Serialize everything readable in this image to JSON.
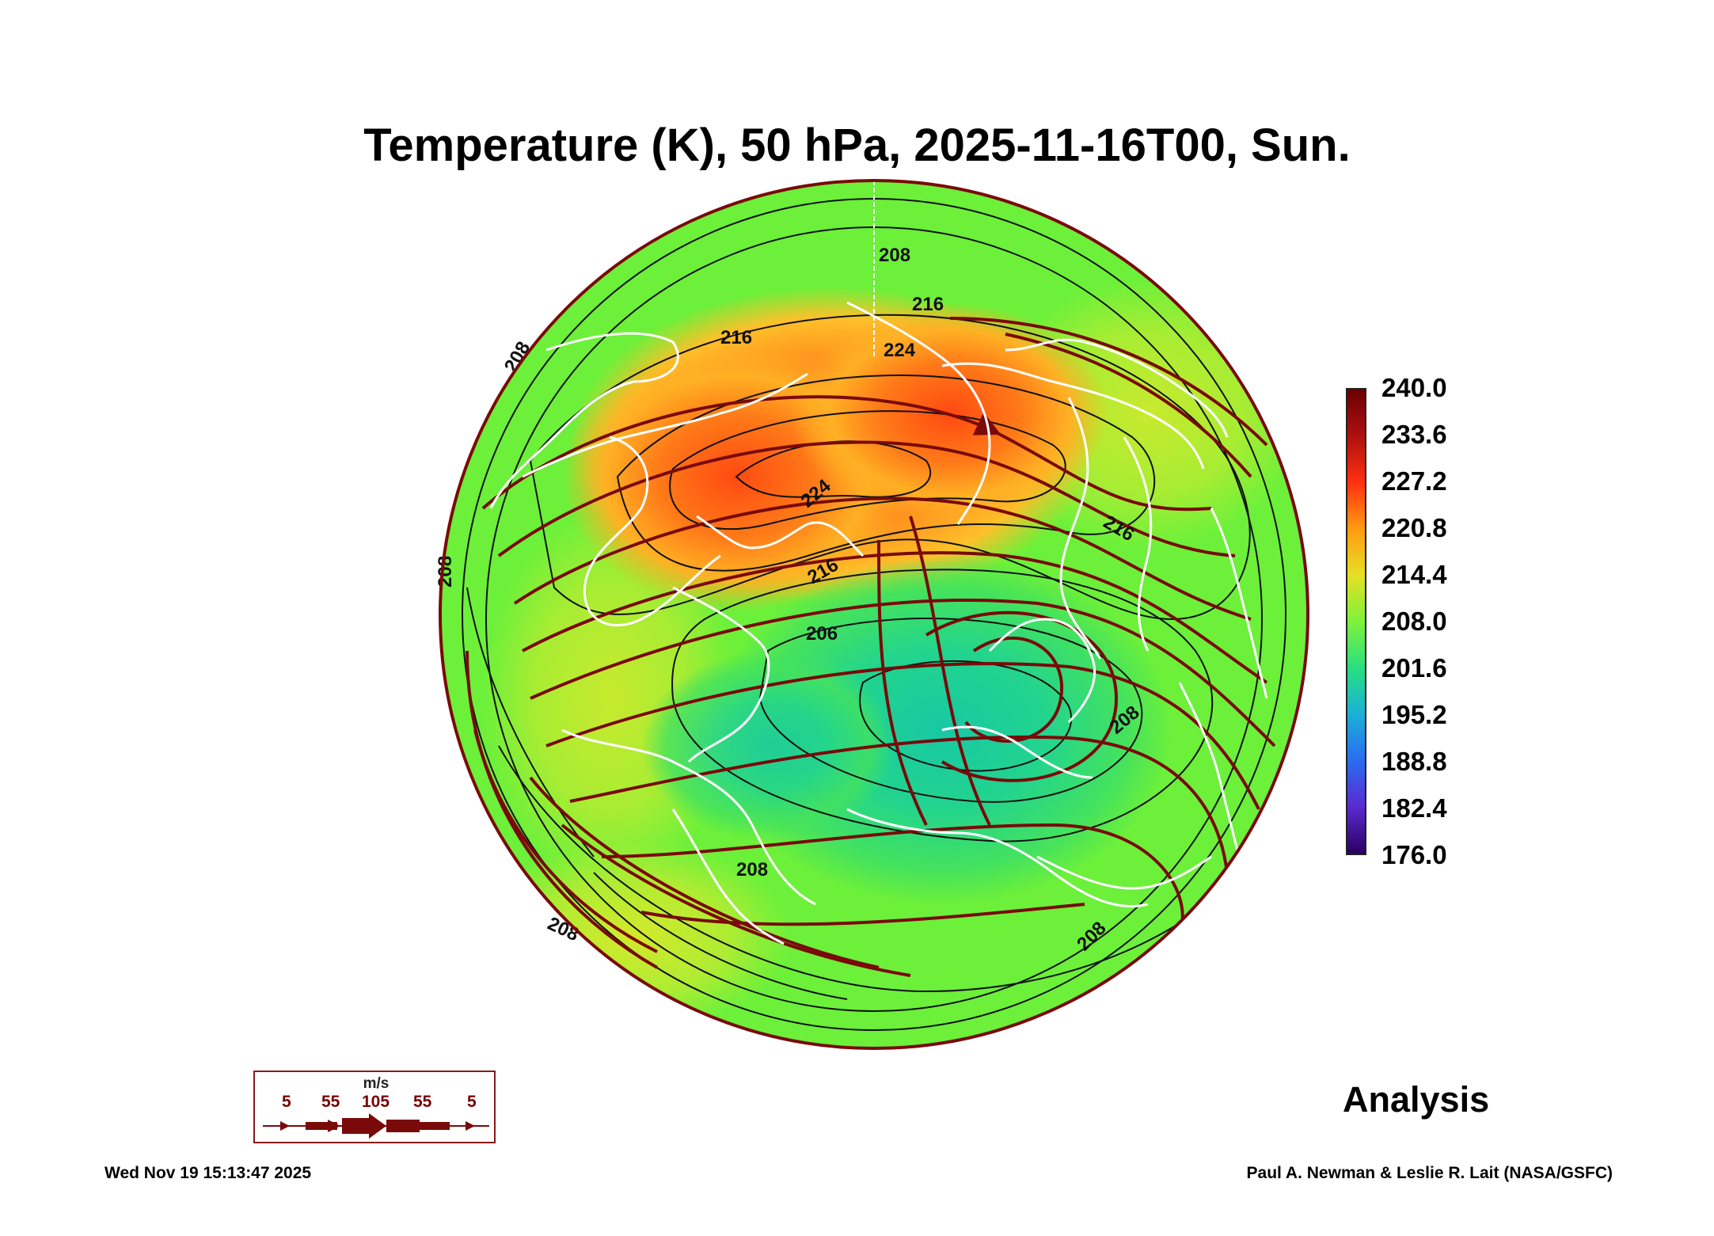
{
  "title": "Temperature (K), 50 hPa, 2025-11-16T00, Sun.",
  "colorbar": {
    "labels": [
      "240.0",
      "233.6",
      "227.2",
      "220.8",
      "214.4",
      "208.0",
      "201.6",
      "195.2",
      "188.8",
      "182.4",
      "176.0"
    ],
    "min": 176.0,
    "max": 240.0,
    "colors": [
      "#6a0000",
      "#b01010",
      "#ff3010",
      "#ff9a10",
      "#e6e024",
      "#7ef23a",
      "#28e080",
      "#1ab0d8",
      "#2a6cf0",
      "#5a2ad0",
      "#2a0060"
    ]
  },
  "map": {
    "contour_labels": [
      "208",
      "216",
      "224",
      "208",
      "216",
      "208",
      "224",
      "216",
      "206",
      "216",
      "208",
      "208",
      "208",
      "208"
    ],
    "field_colors": {
      "warm": "#ff5a14",
      "warm_mid": "#ffa020",
      "mid": "#d6e82a",
      "base": "#6cf03a",
      "cool": "#30dc7a",
      "cold": "#1ec7a0",
      "streamline": "#7a0a0a",
      "contour": "#111111",
      "coast": "#ffffff"
    }
  },
  "wind_legend": {
    "unit": "m/s",
    "values": [
      "5",
      "55",
      "105",
      "55",
      "5"
    ]
  },
  "analysis_label": "Analysis",
  "footer": {
    "timestamp": "Wed Nov 19 15:13:47 2025",
    "credit": "Paul A. Newman & Leslie R. Lait (NASA/GSFC)"
  }
}
